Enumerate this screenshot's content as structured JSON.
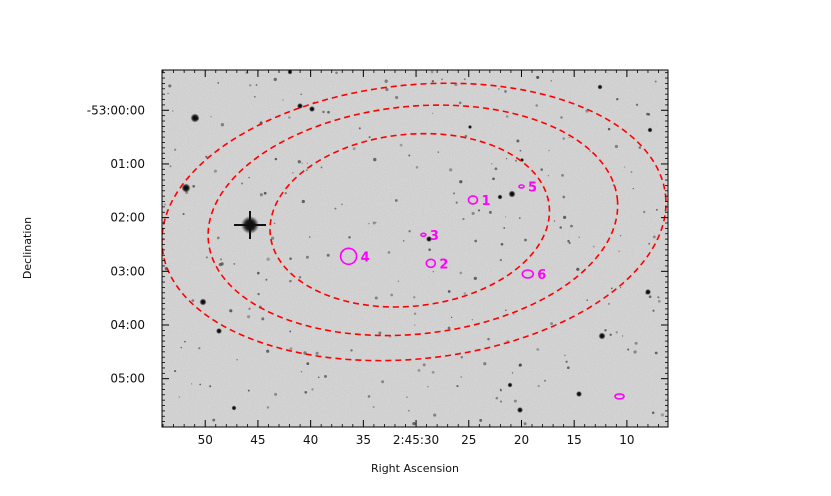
{
  "chart_data": {
    "type": "scatter",
    "title": "",
    "xlabel": "Right Ascension",
    "ylabel": "Declination",
    "x_ticks": [
      {
        "label": "50",
        "ra_sec": 50
      },
      {
        "label": "45",
        "ra_sec": 45
      },
      {
        "label": "40",
        "ra_sec": 40
      },
      {
        "label": "35",
        "ra_sec": 35
      },
      {
        "label": "2:45:30",
        "ra_sec": 30
      },
      {
        "label": "25",
        "ra_sec": 25
      },
      {
        "label": "20",
        "ra_sec": 20
      },
      {
        "label": "15",
        "ra_sec": 15
      },
      {
        "label": "10",
        "ra_sec": 10
      }
    ],
    "y_ticks": [
      {
        "label": "-53:00:00",
        "dec_min": 0
      },
      {
        "label": "01:00",
        "dec_min": 1
      },
      {
        "label": "02:00",
        "dec_min": 2
      },
      {
        "label": "03:00",
        "dec_min": 3
      },
      {
        "label": "04:00",
        "dec_min": 4
      },
      {
        "label": "05:00",
        "dec_min": 5
      }
    ],
    "x_axis": {
      "unit": "RA seconds past 2h45m",
      "range": [
        54.1,
        6.1
      ],
      "reversed": true
    },
    "y_axis": {
      "unit": "arcmin south of -53:00:00",
      "range": [
        -0.75,
        5.9
      ],
      "reversed": true
    },
    "background": "grayscale optical sky image",
    "contours": {
      "color": "#ff0000",
      "style": "dashed",
      "levels": [
        {
          "center": [
            30.6,
            2.05
          ],
          "rx_sec": 13.3,
          "ry_min": 1.6,
          "rotation_deg": -6
        },
        {
          "center": [
            30.3,
            2.05
          ],
          "rx_sec": 19.5,
          "ry_min": 2.12,
          "rotation_deg": -6
        },
        {
          "center": [
            30.2,
            2.08
          ],
          "rx_sec": 24.0,
          "ry_min": 2.55,
          "rotation_deg": -6
        }
      ]
    },
    "sources": [
      {
        "label": "1",
        "ra_sec": 24.6,
        "dec_min": 1.67
      },
      {
        "label": "2",
        "ra_sec": 28.6,
        "dec_min": 2.85
      },
      {
        "label": "3",
        "ra_sec": 29.3,
        "dec_min": 2.32
      },
      {
        "label": "4",
        "ra_sec": 36.4,
        "dec_min": 2.72
      },
      {
        "label": "5",
        "ra_sec": 20.0,
        "dec_min": 1.42
      },
      {
        "label": "6",
        "ra_sec": 19.4,
        "dec_min": 3.05
      },
      {
        "label": "",
        "ra_sec": 10.7,
        "dec_min": 5.33
      }
    ],
    "marker_color": "#ff00ff",
    "grid": false,
    "legend": "none"
  }
}
